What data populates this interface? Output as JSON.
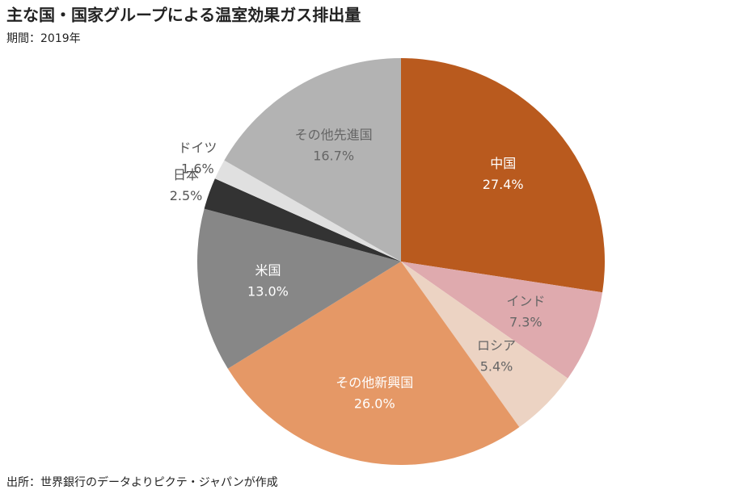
{
  "chart_data": {
    "type": "pie",
    "title": "主な国・国家グループによる温室効果ガス排出量",
    "subtitle": "期間：2019年",
    "source": "出所：世界銀行のデータよりピクテ・ジャパンが作成",
    "categories": [
      "中国",
      "インド",
      "ロシア",
      "その他新興国",
      "米国",
      "日本",
      "ドイツ",
      "その他先進国"
    ],
    "values": [
      27.4,
      7.3,
      5.4,
      26.0,
      13.0,
      2.5,
      1.6,
      16.7
    ],
    "value_labels": [
      "27.4%",
      "7.3%",
      "5.4%",
      "26.0%",
      "13.0%",
      "2.5%",
      "1.6%",
      "16.7%"
    ],
    "colors": [
      "#b95a1e",
      "#dfaaae",
      "#ecd3c3",
      "#e59866",
      "#878787",
      "#333333",
      "#e0e0e0",
      "#b3b3b3"
    ]
  }
}
